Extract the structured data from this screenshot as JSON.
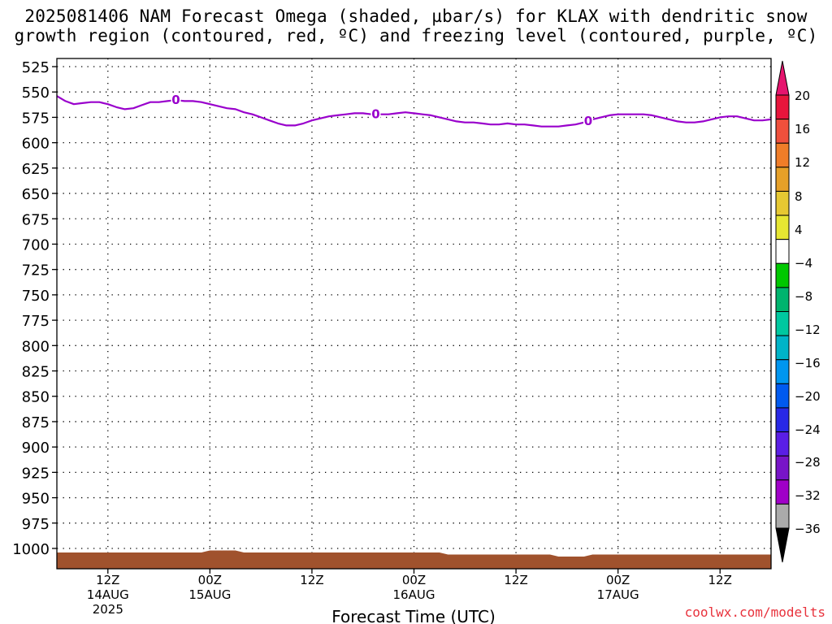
{
  "title": {
    "line1": "2025081406 NAM Forecast Omega (shaded, µbar/s) for KLAX with dendritic snow",
    "line2": "growth region (contoured, red, ºC) and freezing level (contoured, purple, ºC)"
  },
  "credit": "coolwx.com/modelts",
  "chart_data": {
    "type": "line",
    "xlabel": "Forecast Time (UTC)",
    "ylabel": "",
    "x_unit": "forecast hour from 2025-08-14 06Z",
    "xlim": [
      0,
      84
    ],
    "ylim": [
      520,
      1020
    ],
    "y_reversed": true,
    "grid": true,
    "y_ticks": [
      525,
      550,
      575,
      600,
      625,
      650,
      675,
      700,
      725,
      750,
      775,
      800,
      825,
      850,
      875,
      900,
      925,
      950,
      975,
      1000
    ],
    "x_ticks": [
      {
        "x": 6,
        "labels": [
          "12Z",
          "14AUG",
          "2025"
        ]
      },
      {
        "x": 18,
        "labels": [
          "00Z",
          "15AUG"
        ]
      },
      {
        "x": 30,
        "labels": [
          "12Z"
        ]
      },
      {
        "x": 42,
        "labels": [
          "00Z",
          "16AUG"
        ]
      },
      {
        "x": 54,
        "labels": [
          "12Z"
        ]
      },
      {
        "x": 66,
        "labels": [
          "00Z",
          "17AUG"
        ]
      },
      {
        "x": 78,
        "labels": [
          "12Z"
        ]
      }
    ],
    "freezing_level": {
      "name": "freezing level (0 ºC)",
      "color": "#9900cc",
      "contour_label": "0",
      "label_x": [
        14,
        37.5,
        62.5
      ],
      "x": [
        0,
        1,
        2,
        3,
        4,
        5,
        6,
        7,
        8,
        9,
        10,
        11,
        12,
        13,
        14,
        15,
        16,
        17,
        18,
        19,
        20,
        21,
        22,
        23,
        24,
        25,
        26,
        27,
        28,
        29,
        30,
        31,
        32,
        33,
        34,
        35,
        36,
        37,
        38,
        39,
        40,
        41,
        42,
        43,
        44,
        45,
        46,
        47,
        48,
        49,
        50,
        51,
        52,
        53,
        54,
        55,
        56,
        57,
        58,
        59,
        60,
        61,
        62,
        63,
        64,
        65,
        66,
        67,
        68,
        69,
        70,
        71,
        72,
        73,
        74,
        75,
        76,
        77,
        78,
        79,
        80,
        81,
        82,
        83,
        84
      ],
      "pressure": [
        554,
        559,
        562,
        561,
        560,
        560,
        562,
        565,
        567,
        566,
        563,
        560,
        560,
        559,
        558,
        559,
        559,
        560,
        562,
        564,
        566,
        567,
        570,
        572,
        575,
        578,
        581,
        583,
        583,
        581,
        578,
        576,
        574,
        573,
        572,
        571,
        571,
        572,
        572,
        572,
        571,
        570,
        571,
        572,
        573,
        575,
        577,
        579,
        580,
        580,
        581,
        582,
        582,
        581,
        582,
        582,
        583,
        584,
        584,
        584,
        583,
        582,
        580,
        577,
        575,
        573,
        572,
        572,
        572,
        572,
        573,
        575,
        577,
        579,
        580,
        580,
        579,
        577,
        575,
        574,
        574,
        576,
        578,
        578,
        577
      ]
    },
    "ground": {
      "color": "#a0522d",
      "x": [
        0,
        17,
        18,
        21,
        22,
        45,
        46,
        58,
        59,
        62,
        63,
        84
      ],
      "pressure": [
        1004,
        1004,
        1002,
        1002,
        1004,
        1004,
        1006,
        1006,
        1008,
        1008,
        1006,
        1006
      ]
    },
    "colorbar": {
      "title": "Omega (µbar/s)",
      "levels": [
        20,
        16,
        12,
        8,
        4,
        -4,
        -8,
        -12,
        -16,
        -20,
        -24,
        -28,
        -32,
        -36
      ],
      "colors": [
        "#e8153c",
        "#f0503c",
        "#f07d28",
        "#e6a028",
        "#e6c832",
        "#e6e632",
        "#ffffff",
        "#00c800",
        "#00b46e",
        "#00c8a0",
        "#00b4c8",
        "#0096f0",
        "#005af0",
        "#2828e6",
        "#5a1ee6",
        "#7814c8",
        "#a000c8",
        "#aaaaaa"
      ],
      "top_arrow_color": "#e6146e",
      "bottom_arrow_color": "#000000"
    }
  }
}
